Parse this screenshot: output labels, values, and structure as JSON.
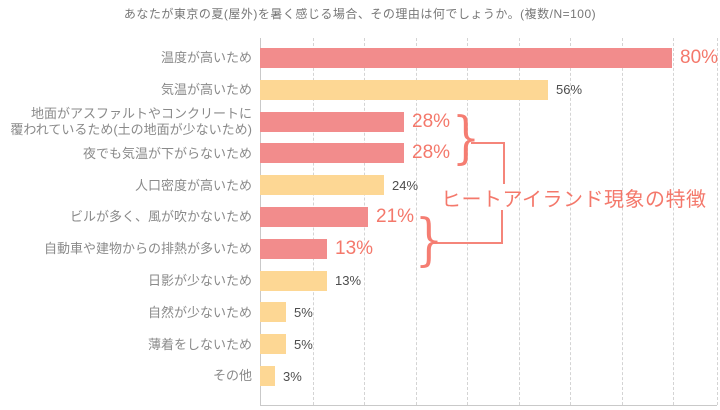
{
  "title": "あなたが東京の夏(屋外)を暑く感じる場合、その理由は何でしょうか。(複数/N=100)",
  "colors": {
    "bar_pink": "#F28C8C",
    "bar_yellow": "#FDD794",
    "accent_text": "#F4786B",
    "value_text": "#4D4D4D",
    "category_text": "#8A8A8A",
    "title_text": "#777777",
    "axis": "#C9C9C9",
    "grid": "#D4D4D4"
  },
  "chart_data": {
    "type": "bar",
    "orientation": "horizontal",
    "title": "あなたが東京の夏(屋外)を暑く感じる場合、その理由は何でしょうか。(複数/N=100)",
    "unit": "%",
    "xlim": [
      0,
      90
    ],
    "gridline_interval_pct": 10,
    "grid": true,
    "categories": [
      "温度が高いため",
      "気温が高いため",
      "地面がアスファルトやコンクリートに\n覆われているため(土の地面が少ないため)",
      "夜でも気温が下がらないため",
      "人口密度が高いため",
      "ビルが多く、風が吹かないため",
      "自動車や建物からの排熱が多いため",
      "日影が少ないため",
      "自然が少ないため",
      "薄着をしないため",
      "その他"
    ],
    "values": [
      80,
      56,
      28,
      28,
      24,
      21,
      13,
      13,
      5,
      5,
      3
    ],
    "value_labels": [
      "80%",
      "56%",
      "28%",
      "28%",
      "24%",
      "21%",
      "13%",
      "13%",
      "5%",
      "5%",
      "3%"
    ],
    "bar_styles": [
      "pink",
      "yellow",
      "pink",
      "pink",
      "yellow",
      "pink",
      "pink",
      "yellow",
      "yellow",
      "yellow",
      "yellow"
    ],
    "emphasized_value_indices": [
      0,
      2,
      3,
      5,
      6
    ]
  },
  "annotation": {
    "text": "ヒートアイランド現象の特徴",
    "brace_glyph": "}",
    "applies_to_categories": [
      "地面がアスファルトやコンクリートに覆われているため(土の地面が少ないため)",
      "夜でも気温が下がらないため",
      "ビルが多く、風が吹かないため",
      "自動車や建物からの排熱が多いため"
    ]
  }
}
